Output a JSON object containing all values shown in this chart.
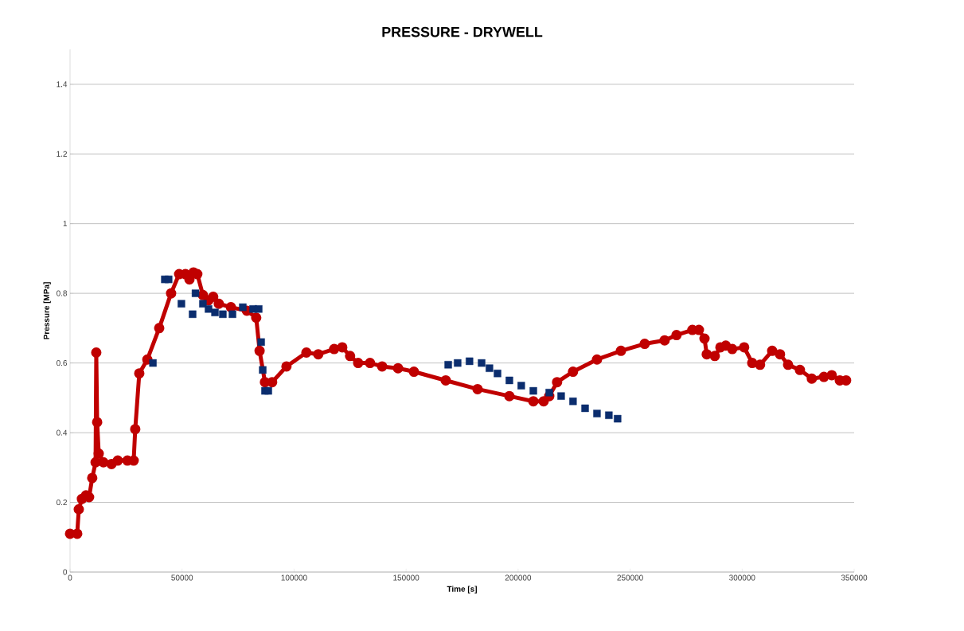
{
  "chart_data": {
    "type": "line",
    "title": "PRESSURE - DRYWELL",
    "xlabel": "Time [s]",
    "ylabel": "Pressure [MPa]",
    "xlim": [
      0,
      350000
    ],
    "xticks": [
      0,
      50000,
      100000,
      150000,
      200000,
      250000,
      300000,
      350000
    ],
    "ylim": [
      0,
      1.5
    ],
    "yticks": [
      0,
      0.2,
      0.4,
      0.6,
      0.8,
      1,
      1.2,
      1.4
    ],
    "grid": "y",
    "series": [
      {
        "type": "scatter",
        "marker": "square",
        "color": "#0b2d6e",
        "x": [
          37000,
          42300,
          44000,
          49700,
          54700,
          56000,
          59300,
          61800,
          64700,
          68200,
          72500,
          77100,
          81700,
          84200,
          85300,
          86000,
          87000,
          88500,
          168800,
          173000,
          178300,
          183700,
          187200,
          190800,
          196100,
          201400,
          206800,
          213900,
          219200,
          224500,
          229900,
          235200,
          240500,
          244400
        ],
        "values": [
          0.6,
          0.84,
          0.84,
          0.77,
          0.74,
          0.8,
          0.77,
          0.755,
          0.745,
          0.74,
          0.74,
          0.76,
          0.755,
          0.755,
          0.66,
          0.58,
          0.52,
          0.52,
          0.595,
          0.6,
          0.605,
          0.6,
          0.585,
          0.57,
          0.55,
          0.535,
          0.52,
          0.515,
          0.505,
          0.49,
          0.47,
          0.455,
          0.45,
          0.44
        ]
      },
      {
        "marker": "circle",
        "line_style": "solid",
        "color": "#c00000",
        "x": [
          0,
          3200,
          3900,
          5300,
          7100,
          8500,
          9900,
          11400,
          11700,
          12100,
          12800,
          14900,
          18500,
          21300,
          25600,
          28400,
          29100,
          30900,
          34500,
          39800,
          45100,
          48700,
          51500,
          53300,
          55100,
          56800,
          59300,
          61800,
          63900,
          66400,
          71800,
          78900,
          83100,
          84600,
          87000,
          90200,
          96600,
          105500,
          110800,
          117900,
          121500,
          125000,
          128600,
          133900,
          139300,
          146400,
          153500,
          167700,
          181900,
          196100,
          206800,
          211400,
          213900,
          217400,
          224500,
          235200,
          245900,
          256500,
          265400,
          270700,
          277800,
          280700,
          283200,
          284200,
          287800,
          290300,
          292700,
          295600,
          300900,
          304500,
          308000,
          313400,
          316900,
          320500,
          325800,
          331100,
          336500,
          340000,
          343600,
          346400
        ],
        "values": [
          0.11,
          0.11,
          0.18,
          0.21,
          0.22,
          0.215,
          0.27,
          0.315,
          0.63,
          0.43,
          0.34,
          0.315,
          0.31,
          0.32,
          0.32,
          0.32,
          0.41,
          0.57,
          0.61,
          0.7,
          0.8,
          0.855,
          0.855,
          0.84,
          0.86,
          0.855,
          0.795,
          0.78,
          0.79,
          0.77,
          0.76,
          0.75,
          0.73,
          0.635,
          0.545,
          0.545,
          0.59,
          0.63,
          0.625,
          0.64,
          0.645,
          0.62,
          0.6,
          0.6,
          0.59,
          0.585,
          0.575,
          0.55,
          0.525,
          0.505,
          0.49,
          0.49,
          0.505,
          0.545,
          0.575,
          0.61,
          0.635,
          0.655,
          0.665,
          0.68,
          0.695,
          0.695,
          0.67,
          0.625,
          0.62,
          0.645,
          0.65,
          0.64,
          0.645,
          0.6,
          0.595,
          0.635,
          0.625,
          0.595,
          0.58,
          0.555,
          0.56,
          0.565,
          0.55,
          0.55
        ]
      }
    ]
  }
}
